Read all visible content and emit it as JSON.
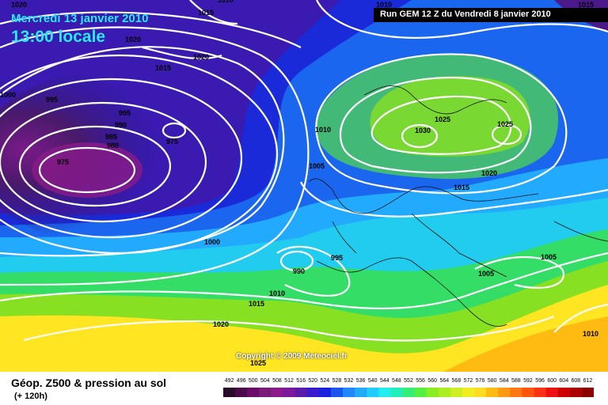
{
  "header": {
    "date": "Mercredi 13 janvier 2010",
    "time": "13:00 locale",
    "run": "Run GEM 12 Z du Vendredi 8 janvier 2010"
  },
  "footer": {
    "product": "Géop. Z500 & pression au sol",
    "lead": "(+ 120h)",
    "copyright": "Copyright © 2009 Meteociel.fr"
  },
  "legend": {
    "values": [
      "492",
      "496",
      "500",
      "504",
      "508",
      "512",
      "516",
      "520",
      "524",
      "528",
      "532",
      "536",
      "540",
      "544",
      "548",
      "552",
      "556",
      "560",
      "564",
      "568",
      "572",
      "576",
      "580",
      "584",
      "588",
      "592",
      "596",
      "600",
      "604",
      "608",
      "612"
    ],
    "colors": [
      "#2a0a2a",
      "#4a0a4a",
      "#6a0a6a",
      "#7a1a7a",
      "#8a1a8a",
      "#7a1a9a",
      "#5a1aaa",
      "#3a1acc",
      "#1a22dd",
      "#1a55ee",
      "#2288ff",
      "#22aaff",
      "#22ccff",
      "#22eeee",
      "#22eebb",
      "#33ee77",
      "#55ee44",
      "#88ee22",
      "#aaee22",
      "#ccee22",
      "#eeee22",
      "#ffdd22",
      "#ffbb11",
      "#ff9911",
      "#ff7711",
      "#ff5511",
      "#ff3311",
      "#ee1111",
      "#cc0000",
      "#aa0000",
      "#880000"
    ]
  },
  "isobar_labels": [
    {
      "text": "1020"
    },
    {
      "text": "1015"
    },
    {
      "text": "1010"
    },
    {
      "text": "1010"
    },
    {
      "text": "1020"
    },
    {
      "text": "1015"
    },
    {
      "text": "1020"
    },
    {
      "text": "1015"
    },
    {
      "text": "1000"
    },
    {
      "text": "995"
    },
    {
      "text": "995"
    },
    {
      "text": "990"
    },
    {
      "text": "985"
    },
    {
      "text": "980"
    },
    {
      "text": "975"
    },
    {
      "text": "975"
    },
    {
      "text": "1010"
    },
    {
      "text": "1005"
    },
    {
      "text": "1030"
    },
    {
      "text": "1025"
    },
    {
      "text": "1025"
    },
    {
      "text": "1020"
    },
    {
      "text": "1015"
    },
    {
      "text": "1000"
    },
    {
      "text": "995"
    },
    {
      "text": "990"
    },
    {
      "text": "1005"
    },
    {
      "text": "1005"
    },
    {
      "text": "1010"
    },
    {
      "text": "1015"
    },
    {
      "text": "1020"
    },
    {
      "text": "1010"
    },
    {
      "text": "1025"
    }
  ]
}
